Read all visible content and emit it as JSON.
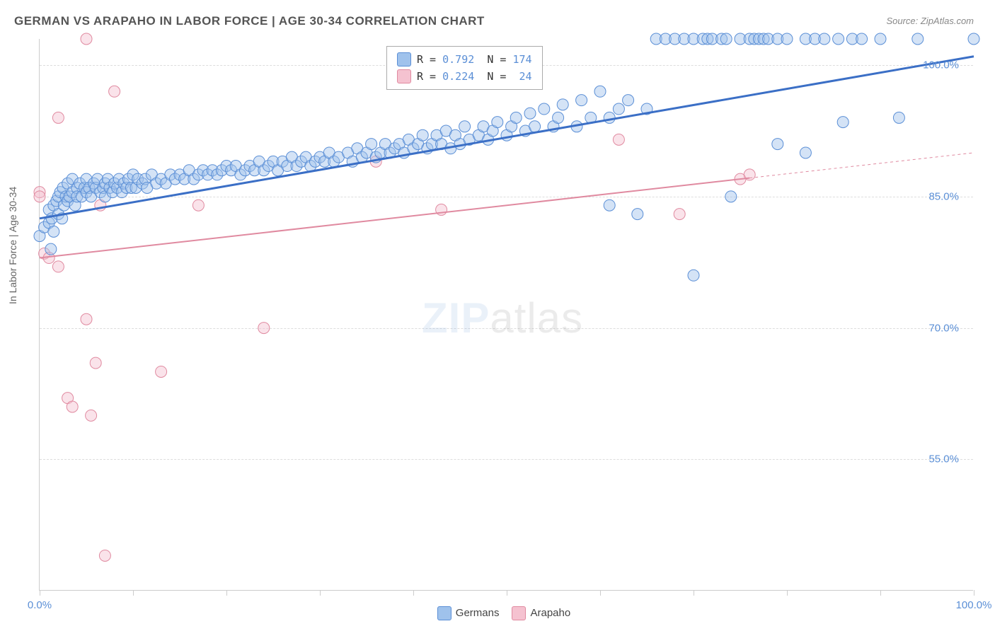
{
  "title": "GERMAN VS ARAPAHO IN LABOR FORCE | AGE 30-34 CORRELATION CHART",
  "source": "Source: ZipAtlas.com",
  "yaxis_label": "In Labor Force | Age 30-34",
  "watermark_zip": "ZIP",
  "watermark_atlas": "atlas",
  "chart": {
    "type": "scatter-with-regression",
    "background_color": "#ffffff",
    "grid_color": "#dddddd",
    "axis_color": "#cccccc",
    "tick_label_color": "#5b8fd6",
    "xlim": [
      0,
      100
    ],
    "ylim": [
      40,
      103
    ],
    "ytick_values": [
      55.0,
      70.0,
      85.0,
      100.0
    ],
    "ytick_labels": [
      "55.0%",
      "70.0%",
      "85.0%",
      "100.0%"
    ],
    "xtick_values": [
      0,
      10,
      20,
      30,
      40,
      50,
      60,
      70,
      80,
      90,
      100
    ],
    "xtick_labels_shown": {
      "0": "0.0%",
      "100": "100.0%"
    },
    "marker_radius": 8,
    "marker_opacity": 0.45,
    "series": [
      {
        "name": "Germans",
        "fill_color": "#9fc2ec",
        "stroke_color": "#5b8fd6",
        "line_color": "#3b6fc6",
        "line_width": 3,
        "R": "0.792",
        "N": "174",
        "regression": {
          "x1": 0,
          "y1": 82.5,
          "x2": 100,
          "y2": 101.0,
          "dashed_from_x": null
        },
        "points": [
          [
            0,
            80.5
          ],
          [
            0.5,
            81.5
          ],
          [
            1,
            82
          ],
          [
            1,
            83.5
          ],
          [
            1.2,
            79
          ],
          [
            1.3,
            82.5
          ],
          [
            1.5,
            84
          ],
          [
            1.5,
            81
          ],
          [
            1.8,
            84.5
          ],
          [
            2,
            85
          ],
          [
            2,
            83
          ],
          [
            2.2,
            85.5
          ],
          [
            2.4,
            82.5
          ],
          [
            2.5,
            86
          ],
          [
            2.6,
            84
          ],
          [
            2.8,
            85
          ],
          [
            3,
            86.5
          ],
          [
            3,
            84.5
          ],
          [
            3.2,
            85
          ],
          [
            3.5,
            85.5
          ],
          [
            3.5,
            87
          ],
          [
            3.8,
            84
          ],
          [
            4,
            86
          ],
          [
            4,
            85
          ],
          [
            4.3,
            86.5
          ],
          [
            4.5,
            85
          ],
          [
            4.8,
            86
          ],
          [
            5,
            87
          ],
          [
            5,
            85.5
          ],
          [
            5.3,
            86
          ],
          [
            5.5,
            85
          ],
          [
            5.8,
            86.5
          ],
          [
            6,
            86
          ],
          [
            6.2,
            87
          ],
          [
            6.5,
            85.5
          ],
          [
            6.8,
            86
          ],
          [
            7,
            86.5
          ],
          [
            7,
            85
          ],
          [
            7.3,
            87
          ],
          [
            7.5,
            86
          ],
          [
            7.8,
            85.5
          ],
          [
            8,
            86.5
          ],
          [
            8.3,
            86
          ],
          [
            8.5,
            87
          ],
          [
            8.8,
            85.5
          ],
          [
            9,
            86.5
          ],
          [
            9.3,
            86
          ],
          [
            9.5,
            87
          ],
          [
            9.8,
            86
          ],
          [
            10,
            87.5
          ],
          [
            10.3,
            86
          ],
          [
            10.5,
            87
          ],
          [
            11,
            86.5
          ],
          [
            11.3,
            87
          ],
          [
            11.5,
            86
          ],
          [
            12,
            87.5
          ],
          [
            12.5,
            86.5
          ],
          [
            13,
            87
          ],
          [
            13.5,
            86.5
          ],
          [
            14,
            87.5
          ],
          [
            14.5,
            87
          ],
          [
            15,
            87.5
          ],
          [
            15.5,
            87
          ],
          [
            16,
            88
          ],
          [
            16.5,
            87
          ],
          [
            17,
            87.5
          ],
          [
            17.5,
            88
          ],
          [
            18,
            87.5
          ],
          [
            18.5,
            88
          ],
          [
            19,
            87.5
          ],
          [
            19.5,
            88
          ],
          [
            20,
            88.5
          ],
          [
            20.5,
            88
          ],
          [
            21,
            88.5
          ],
          [
            21.5,
            87.5
          ],
          [
            22,
            88
          ],
          [
            22.5,
            88.5
          ],
          [
            23,
            88
          ],
          [
            23.5,
            89
          ],
          [
            24,
            88
          ],
          [
            24.5,
            88.5
          ],
          [
            25,
            89
          ],
          [
            25.5,
            88
          ],
          [
            26,
            89
          ],
          [
            26.5,
            88.5
          ],
          [
            27,
            89.5
          ],
          [
            27.5,
            88.5
          ],
          [
            28,
            89
          ],
          [
            28.5,
            89.5
          ],
          [
            29,
            88.5
          ],
          [
            29.5,
            89
          ],
          [
            30,
            89.5
          ],
          [
            30.5,
            89
          ],
          [
            31,
            90
          ],
          [
            31.5,
            89
          ],
          [
            32,
            89.5
          ],
          [
            33,
            90
          ],
          [
            33.5,
            89
          ],
          [
            34,
            90.5
          ],
          [
            34.5,
            89.5
          ],
          [
            35,
            90
          ],
          [
            35.5,
            91
          ],
          [
            36,
            89.5
          ],
          [
            36.5,
            90
          ],
          [
            37,
            91
          ],
          [
            37.5,
            90
          ],
          [
            38,
            90.5
          ],
          [
            38.5,
            91
          ],
          [
            39,
            90
          ],
          [
            39.5,
            91.5
          ],
          [
            40,
            90.5
          ],
          [
            40.5,
            91
          ],
          [
            41,
            92
          ],
          [
            41.5,
            90.5
          ],
          [
            42,
            91
          ],
          [
            42.5,
            92
          ],
          [
            43,
            91
          ],
          [
            43.5,
            92.5
          ],
          [
            44,
            90.5
          ],
          [
            44.5,
            92
          ],
          [
            45,
            91
          ],
          [
            45.5,
            93
          ],
          [
            46,
            91.5
          ],
          [
            47,
            92
          ],
          [
            47.5,
            93
          ],
          [
            48,
            91.5
          ],
          [
            48.5,
            92.5
          ],
          [
            49,
            93.5
          ],
          [
            50,
            92
          ],
          [
            50.5,
            93
          ],
          [
            51,
            94
          ],
          [
            52,
            92.5
          ],
          [
            52.5,
            94.5
          ],
          [
            53,
            93
          ],
          [
            54,
            95
          ],
          [
            55,
            93
          ],
          [
            55.5,
            94
          ],
          [
            56,
            95.5
          ],
          [
            57.5,
            93
          ],
          [
            58,
            96
          ],
          [
            59,
            94
          ],
          [
            60,
            97
          ],
          [
            61,
            94
          ],
          [
            61,
            84
          ],
          [
            62,
            95
          ],
          [
            63,
            96
          ],
          [
            64,
            83
          ],
          [
            65,
            95
          ],
          [
            66,
            103
          ],
          [
            67,
            103
          ],
          [
            68,
            103
          ],
          [
            69,
            103
          ],
          [
            70,
            103
          ],
          [
            70,
            76
          ],
          [
            71,
            103
          ],
          [
            71.5,
            103
          ],
          [
            72,
            103
          ],
          [
            73,
            103
          ],
          [
            73.5,
            103
          ],
          [
            74,
            85
          ],
          [
            75,
            103
          ],
          [
            76,
            103
          ],
          [
            76.5,
            103
          ],
          [
            77,
            103
          ],
          [
            77.5,
            103
          ],
          [
            78,
            103
          ],
          [
            79,
            103
          ],
          [
            79,
            91
          ],
          [
            80,
            103
          ],
          [
            82,
            103
          ],
          [
            82,
            90
          ],
          [
            83,
            103
          ],
          [
            84,
            103
          ],
          [
            85.5,
            103
          ],
          [
            86,
            93.5
          ],
          [
            87,
            103
          ],
          [
            88,
            103
          ],
          [
            90,
            103
          ],
          [
            92,
            94
          ],
          [
            94,
            103
          ],
          [
            100,
            103
          ]
        ]
      },
      {
        "name": "Arapaho",
        "fill_color": "#f5c2d0",
        "stroke_color": "#e08aa0",
        "line_color": "#e08aa0",
        "line_width": 2,
        "R": "0.224",
        "N": "24",
        "regression": {
          "x1": 0,
          "y1": 78.0,
          "x2": 100,
          "y2": 90.0,
          "dashed_from_x": 76
        },
        "points": [
          [
            0,
            85.5
          ],
          [
            0,
            85
          ],
          [
            0.5,
            78.5
          ],
          [
            1,
            78
          ],
          [
            2,
            94
          ],
          [
            2,
            77
          ],
          [
            3,
            62
          ],
          [
            3.5,
            61
          ],
          [
            5,
            103
          ],
          [
            5,
            71
          ],
          [
            5.5,
            60
          ],
          [
            6,
            66
          ],
          [
            6.5,
            84
          ],
          [
            7,
            44
          ],
          [
            8,
            97
          ],
          [
            13,
            65
          ],
          [
            17,
            84
          ],
          [
            24,
            70
          ],
          [
            36,
            89
          ],
          [
            43,
            83.5
          ],
          [
            62,
            91.5
          ],
          [
            68.5,
            83
          ],
          [
            75,
            87
          ],
          [
            76,
            87.5
          ]
        ]
      }
    ]
  },
  "bottom_legend": {
    "items": [
      {
        "label": "Germans",
        "fill": "#9fc2ec",
        "stroke": "#5b8fd6"
      },
      {
        "label": "Arapaho",
        "fill": "#f5c2d0",
        "stroke": "#e08aa0"
      }
    ]
  }
}
